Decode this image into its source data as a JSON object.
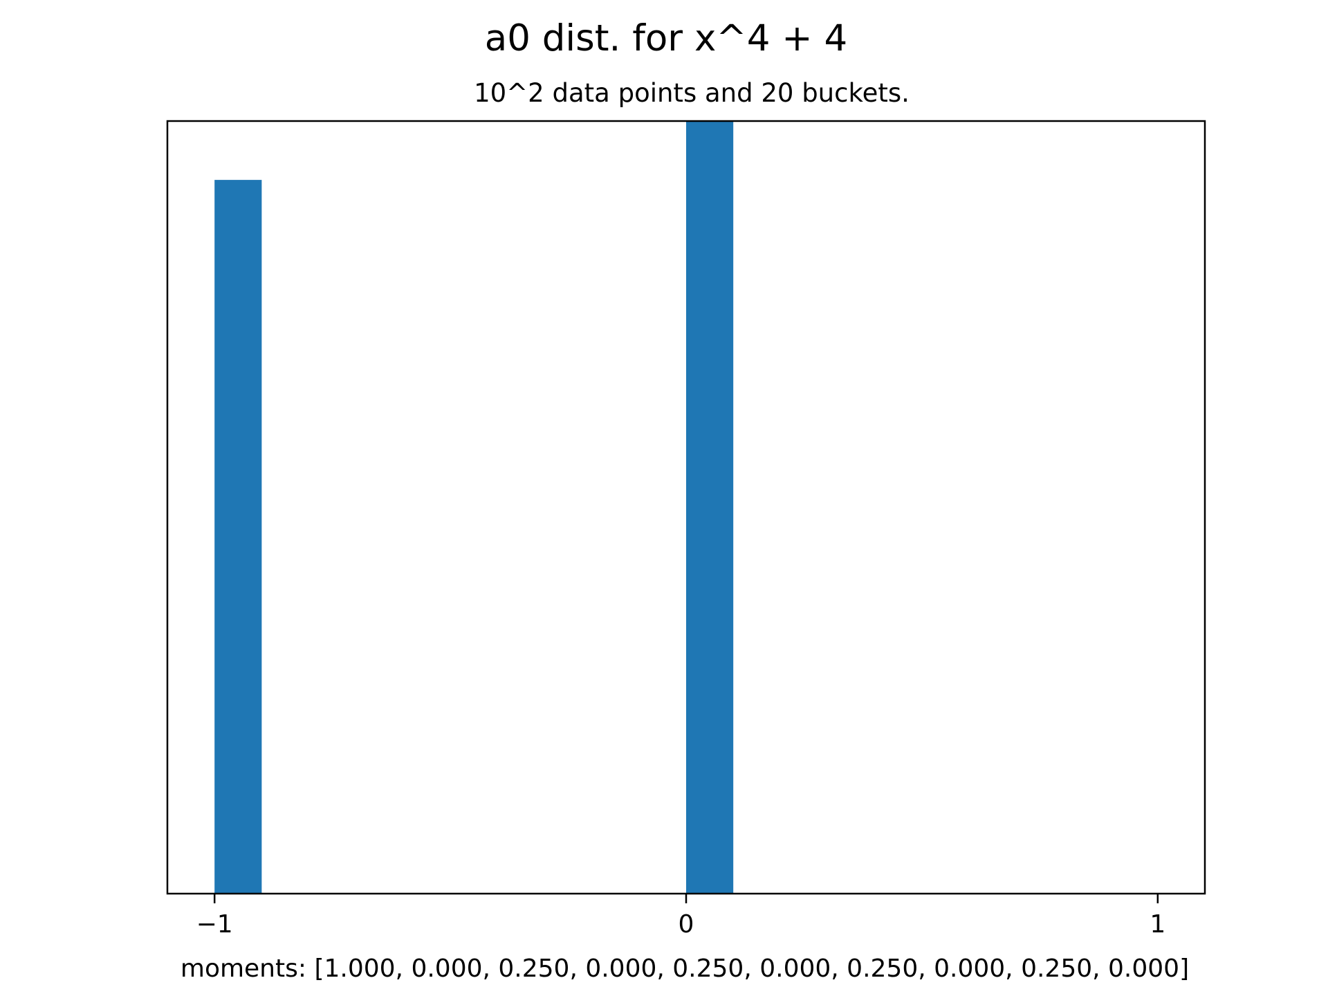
{
  "chart_data": {
    "type": "bar",
    "title": "a0 dist. for x^4 + 4",
    "subtitle": "10^2 data points and 20 buckets.",
    "xlabel": "moments: [1.000, 0.000, 0.250, 0.000, 0.250, 0.000, 0.250, 0.000, 0.250, 0.000]",
    "ylabel": "",
    "xlim": [
      -1.1,
      1.1
    ],
    "ylim": [
      0,
      52.5
    ],
    "x_ticks": [
      {
        "value": -1,
        "label": "−1"
      },
      {
        "value": 0,
        "label": "0"
      },
      {
        "value": 1,
        "label": "1"
      }
    ],
    "y_ticks_visible": false,
    "grid": false,
    "bar_color": "#1f77b4",
    "bins": [
      {
        "x0": -1.0,
        "x1": -0.9,
        "count": 48.5
      },
      {
        "x0": 0.0,
        "x1": 0.1,
        "count": 52.5
      }
    ]
  }
}
